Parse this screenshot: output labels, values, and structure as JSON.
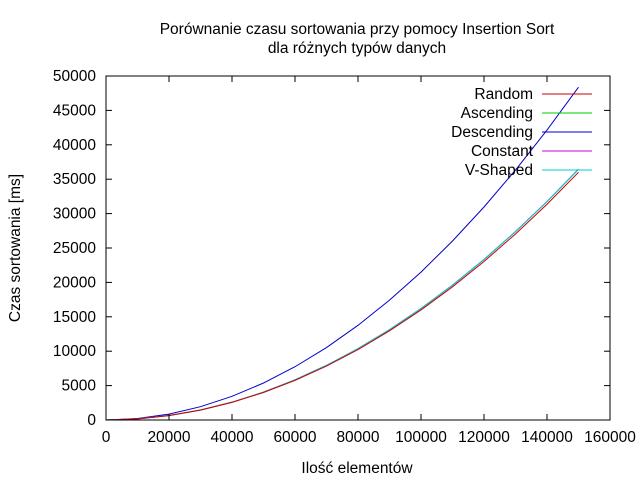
{
  "chart_data": {
    "type": "line",
    "title_line1": "Porównanie czasu sortowania przy pomocy Insertion Sort",
    "title_line2": "dla różnych typów danych",
    "xlabel": "Ilość elementów",
    "ylabel": "Czas sortowania [ms]",
    "xlim": [
      0,
      160000
    ],
    "ylim": [
      0,
      50000
    ],
    "grid": false,
    "legend_position": "top-right",
    "x_ticks": [
      0,
      20000,
      40000,
      60000,
      80000,
      100000,
      120000,
      140000,
      160000
    ],
    "y_ticks": [
      0,
      5000,
      10000,
      15000,
      20000,
      25000,
      30000,
      35000,
      40000,
      45000,
      50000
    ],
    "x_tick_labels": [
      "0",
      "20000",
      "40000",
      "60000",
      "80000",
      "100000",
      "120000",
      "140000",
      "160000"
    ],
    "y_tick_labels": [
      "0",
      "5000",
      "10000",
      "15000",
      "20000",
      "25000",
      "30000",
      "35000",
      "40000",
      "45000",
      "50000"
    ],
    "x": [
      0,
      10000,
      20000,
      30000,
      40000,
      50000,
      60000,
      70000,
      80000,
      90000,
      100000,
      110000,
      120000,
      130000,
      140000,
      150000
    ],
    "series": [
      {
        "name": "Random",
        "color": "#cc0000",
        "values": [
          0,
          160,
          640,
          1440,
          2560,
          4000,
          5760,
          7840,
          10240,
          12960,
          16000,
          19360,
          23040,
          27040,
          31360,
          36000
        ]
      },
      {
        "name": "Ascending",
        "color": "#00cc00",
        "values": [
          0,
          162,
          648,
          1458,
          2592,
          4050,
          5832,
          7938,
          10368,
          13122,
          16200,
          19602,
          23328,
          27378,
          31752,
          36450
        ]
      },
      {
        "name": "Descending",
        "color": "#0000cc",
        "values": [
          0,
          215,
          860,
          1935,
          3440,
          5375,
          7740,
          10535,
          13760,
          17415,
          21500,
          26015,
          30960,
          36335,
          42140,
          48375
        ]
      },
      {
        "name": "Constant",
        "color": "#cc00cc",
        "values": [
          0,
          162,
          648,
          1458,
          2592,
          4050,
          5832,
          7938,
          10368,
          13122,
          16200,
          19602,
          23328,
          27378,
          31752,
          36450
        ]
      },
      {
        "name": "V-Shaped",
        "color": "#00cccc",
        "values": [
          0,
          162,
          648,
          1458,
          2592,
          4050,
          5832,
          7938,
          10368,
          13122,
          16200,
          19602,
          23328,
          27378,
          31752,
          36450
        ]
      }
    ]
  }
}
